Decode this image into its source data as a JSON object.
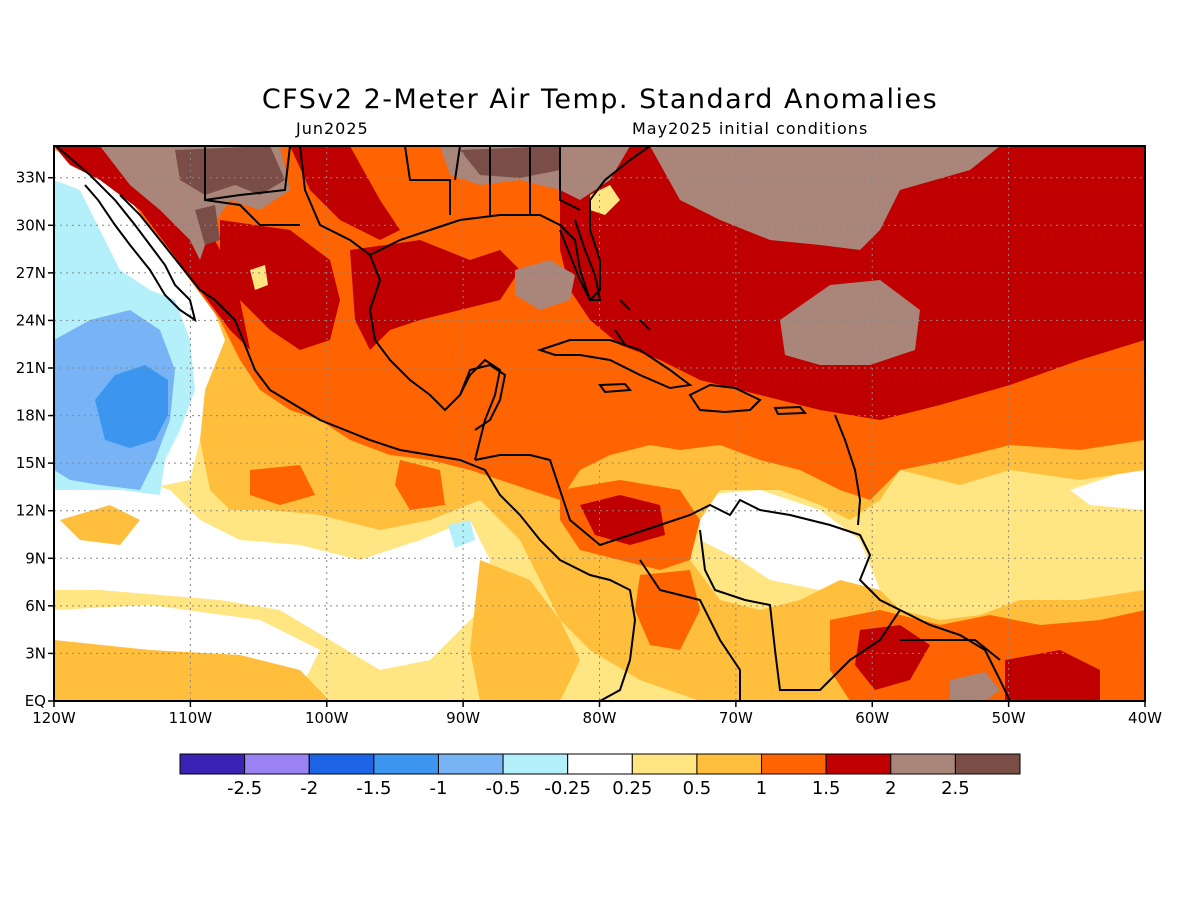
{
  "title": "CFSv2 2-Meter Air Temp. Standard Anomalies",
  "subtitle_left": "Jun2025",
  "subtitle_right": "May2025 initial conditions",
  "map": {
    "lon_range": [
      -120,
      -40
    ],
    "lat_range": [
      0,
      35
    ],
    "lon_ticks": [
      {
        "value": -120,
        "label": "120W"
      },
      {
        "value": -110,
        "label": "110W"
      },
      {
        "value": -100,
        "label": "100W"
      },
      {
        "value": -90,
        "label": "90W"
      },
      {
        "value": -80,
        "label": "80W"
      },
      {
        "value": -70,
        "label": "70W"
      },
      {
        "value": -60,
        "label": "60W"
      },
      {
        "value": -50,
        "label": "50W"
      },
      {
        "value": -40,
        "label": "40W"
      }
    ],
    "lat_ticks": [
      {
        "value": 0,
        "label": "EQ"
      },
      {
        "value": 3,
        "label": "3N"
      },
      {
        "value": 6,
        "label": "6N"
      },
      {
        "value": 9,
        "label": "9N"
      },
      {
        "value": 12,
        "label": "12N"
      },
      {
        "value": 15,
        "label": "15N"
      },
      {
        "value": 18,
        "label": "18N"
      },
      {
        "value": 21,
        "label": "21N"
      },
      {
        "value": 24,
        "label": "24N"
      },
      {
        "value": 27,
        "label": "27N"
      },
      {
        "value": 30,
        "label": "30N"
      },
      {
        "value": 33,
        "label": "33N"
      }
    ],
    "grid": "dotted"
  },
  "colorbar": {
    "colors": [
      "#3a22b4",
      "#9b82f2",
      "#1e64e6",
      "#3c96f0",
      "#78b4f5",
      "#b4f0fa",
      "#ffffff",
      "#ffe682",
      "#ffbe3c",
      "#ff6400",
      "#c00000",
      "#a9857a",
      "#7a4e46"
    ],
    "labels": [
      "-2.5",
      "-2",
      "-1.5",
      "-1",
      "-0.5",
      "-0.25",
      "0.25",
      "0.5",
      "1",
      "1.5",
      "2",
      "2.5"
    ]
  }
}
